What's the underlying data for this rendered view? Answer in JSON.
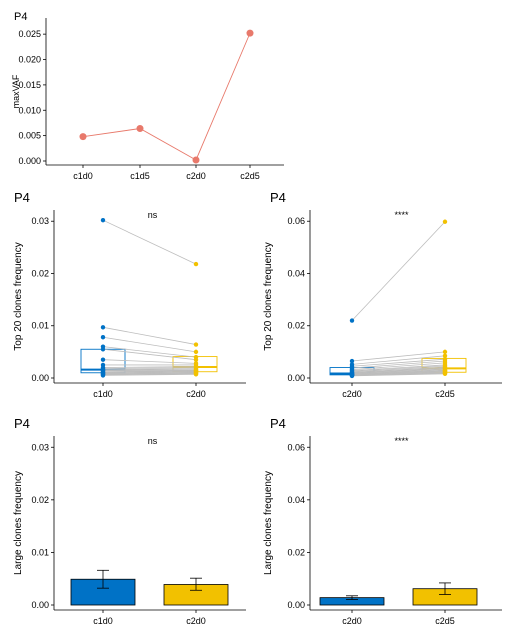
{
  "chart_data": [
    {
      "type": "line",
      "title": "P4",
      "xlabel": "",
      "ylabel": "maxVAF",
      "categories": [
        "c1d0",
        "c1d5",
        "c2d0",
        "c2d5"
      ],
      "values": [
        0.0048,
        0.0064,
        0.0002,
        0.0252
      ],
      "ylim": [
        0,
        0.027
      ],
      "yticks": [
        "0.000",
        "0.005",
        "0.010",
        "0.015",
        "0.020",
        "0.025"
      ],
      "color": "#e8796b",
      "grid": false,
      "legend": "none"
    },
    {
      "type": "scatter",
      "title": "P4",
      "xlabel": "",
      "ylabel": "Top 20 clones frequency",
      "categories": [
        "c1d0",
        "c2d0"
      ],
      "annotation": "ns",
      "ylim": [
        0,
        0.031
      ],
      "yticks": [
        "0.00",
        "0.01",
        "0.02",
        "0.03"
      ],
      "colors": [
        "#0072c6",
        "#f2c100"
      ],
      "paired_values": [
        [
          0.0302,
          0.0218
        ],
        [
          0.0097,
          0.0064
        ],
        [
          0.0078,
          0.005
        ],
        [
          0.006,
          0.004
        ],
        [
          0.0055,
          0.0035
        ],
        [
          0.0035,
          0.0028
        ],
        [
          0.0025,
          0.0025
        ],
        [
          0.002,
          0.0022
        ],
        [
          0.0018,
          0.002
        ],
        [
          0.0016,
          0.0018
        ],
        [
          0.0015,
          0.0016
        ],
        [
          0.0014,
          0.0015
        ],
        [
          0.0012,
          0.0014
        ],
        [
          0.0011,
          0.0013
        ],
        [
          0.001,
          0.0012
        ],
        [
          0.0009,
          0.0011
        ],
        [
          0.0008,
          0.001
        ],
        [
          0.0007,
          0.0009
        ],
        [
          0.0006,
          0.0008
        ],
        [
          0.0005,
          0.0007
        ]
      ],
      "box": [
        {
          "q1": 0.001,
          "median": 0.0016,
          "q3": 0.0055
        },
        {
          "q1": 0.0012,
          "median": 0.0021,
          "q3": 0.0041
        }
      ],
      "grid": false,
      "legend": "none"
    },
    {
      "type": "scatter",
      "title": "P4",
      "xlabel": "",
      "ylabel": "Top 20 clones frequency",
      "categories": [
        "c2d0",
        "c2d5"
      ],
      "annotation": "****",
      "ylim": [
        0,
        0.062
      ],
      "yticks": [
        "0.00",
        "0.02",
        "0.04",
        "0.06"
      ],
      "colors": [
        "#0072c6",
        "#f2c100"
      ],
      "paired_values": [
        [
          0.022,
          0.0598
        ],
        [
          0.0065,
          0.01
        ],
        [
          0.0052,
          0.0085
        ],
        [
          0.0045,
          0.0072
        ],
        [
          0.0038,
          0.0065
        ],
        [
          0.0032,
          0.0058
        ],
        [
          0.0028,
          0.005
        ],
        [
          0.0025,
          0.0046
        ],
        [
          0.0022,
          0.0042
        ],
        [
          0.002,
          0.0039
        ],
        [
          0.0018,
          0.0036
        ],
        [
          0.0016,
          0.0033
        ],
        [
          0.0015,
          0.003
        ],
        [
          0.0014,
          0.0028
        ],
        [
          0.0013,
          0.0026
        ],
        [
          0.0012,
          0.0024
        ],
        [
          0.0011,
          0.0022
        ],
        [
          0.001,
          0.002
        ],
        [
          0.0009,
          0.0018
        ],
        [
          0.0008,
          0.0016
        ]
      ],
      "box": [
        {
          "q1": 0.0012,
          "median": 0.0017,
          "q3": 0.004
        },
        {
          "q1": 0.0022,
          "median": 0.0037,
          "q3": 0.0075
        }
      ],
      "grid": false,
      "legend": "none"
    },
    {
      "type": "bar",
      "title": "P4",
      "xlabel": "",
      "ylabel": "Large clones frequency",
      "categories": [
        "c1d0",
        "c2d0"
      ],
      "values": [
        0.0049,
        0.0039
      ],
      "errors": [
        [
          0.0032,
          0.0066
        ],
        [
          0.0028,
          0.0051
        ]
      ],
      "annotation": "ns",
      "ylim": [
        0,
        0.031
      ],
      "yticks": [
        "0.00",
        "0.01",
        "0.02",
        "0.03"
      ],
      "colors": [
        "#0072c6",
        "#f2c100"
      ],
      "grid": false,
      "legend": "none"
    },
    {
      "type": "bar",
      "title": "P4",
      "xlabel": "",
      "ylabel": "Large clones frequency",
      "categories": [
        "c2d0",
        "c2d5"
      ],
      "values": [
        0.0028,
        0.0062
      ],
      "errors": [
        [
          0.0021,
          0.0035
        ],
        [
          0.004,
          0.0084
        ]
      ],
      "annotation": "****",
      "ylim": [
        0,
        0.062
      ],
      "yticks": [
        "0.00",
        "0.02",
        "0.04",
        "0.06"
      ],
      "colors": [
        "#0072c6",
        "#f2c100"
      ],
      "grid": false,
      "legend": "none"
    }
  ]
}
